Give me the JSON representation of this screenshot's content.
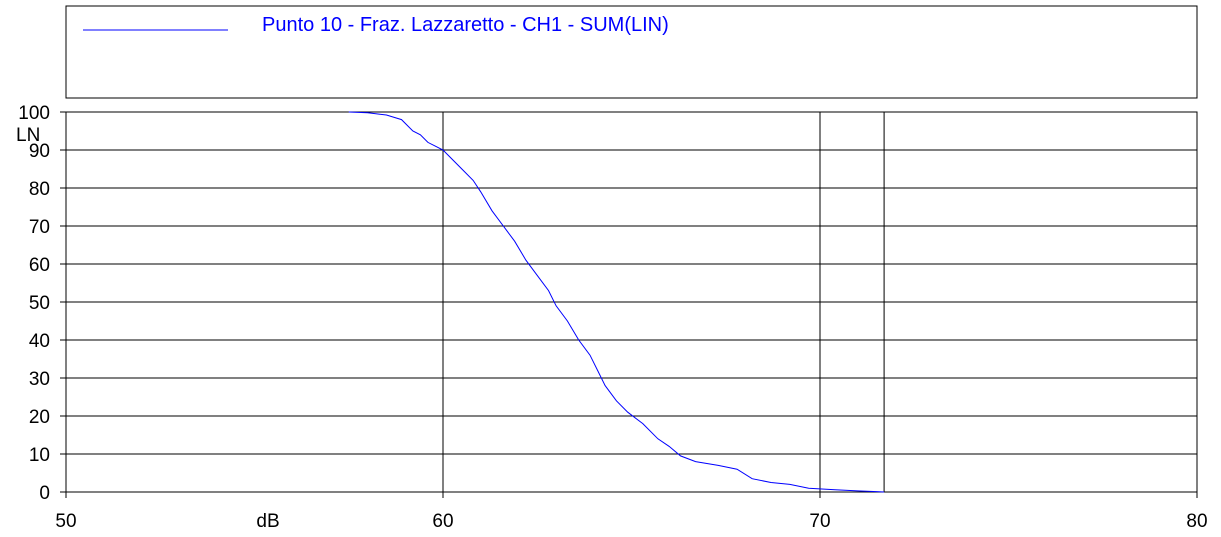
{
  "legend": {
    "label": "Punto 10 - Fraz. Lazzaretto - CH1 - SUM(LIN)",
    "placement": "top"
  },
  "colors": {
    "series": "#0000ff",
    "axis": "#000000",
    "grid": "#000000",
    "background": "#ffffff"
  },
  "chart_data": {
    "type": "line",
    "title": "",
    "xlabel": "dB",
    "ylabel": "LN",
    "xlim": [
      50,
      80
    ],
    "ylim": [
      0,
      100
    ],
    "x_ticks": [
      50,
      60,
      70,
      80
    ],
    "y_ticks": [
      0,
      10,
      20,
      30,
      40,
      50,
      60,
      70,
      80,
      90,
      100
    ],
    "extra_vertical_line_x": 71.7,
    "grid": true,
    "series": [
      {
        "name": "Punto 10 - Fraz. Lazzaretto - CH1 - SUM(LIN)",
        "x": [
          57.5,
          58.0,
          58.5,
          58.9,
          59.2,
          59.4,
          59.6,
          59.8,
          60.0,
          60.2,
          60.5,
          60.8,
          61.0,
          61.3,
          61.6,
          61.9,
          62.2,
          62.5,
          62.8,
          63.0,
          63.3,
          63.6,
          63.9,
          64.1,
          64.3,
          64.6,
          64.9,
          65.3,
          65.7,
          66.0,
          66.3,
          66.7,
          67.3,
          67.8,
          68.2,
          68.7,
          69.2,
          69.7,
          70.4,
          71.0,
          71.5,
          71.7
        ],
        "y": [
          100,
          99.8,
          99.2,
          98,
          95,
          94,
          92,
          91,
          90,
          88,
          85,
          82,
          79,
          74,
          70,
          66,
          61,
          57,
          53,
          49,
          45,
          40,
          36,
          32,
          28,
          24,
          21,
          18,
          14,
          12,
          9.5,
          8,
          7,
          6,
          3.5,
          2.5,
          2,
          1,
          0.6,
          0.3,
          0.1,
          0
        ]
      }
    ]
  }
}
